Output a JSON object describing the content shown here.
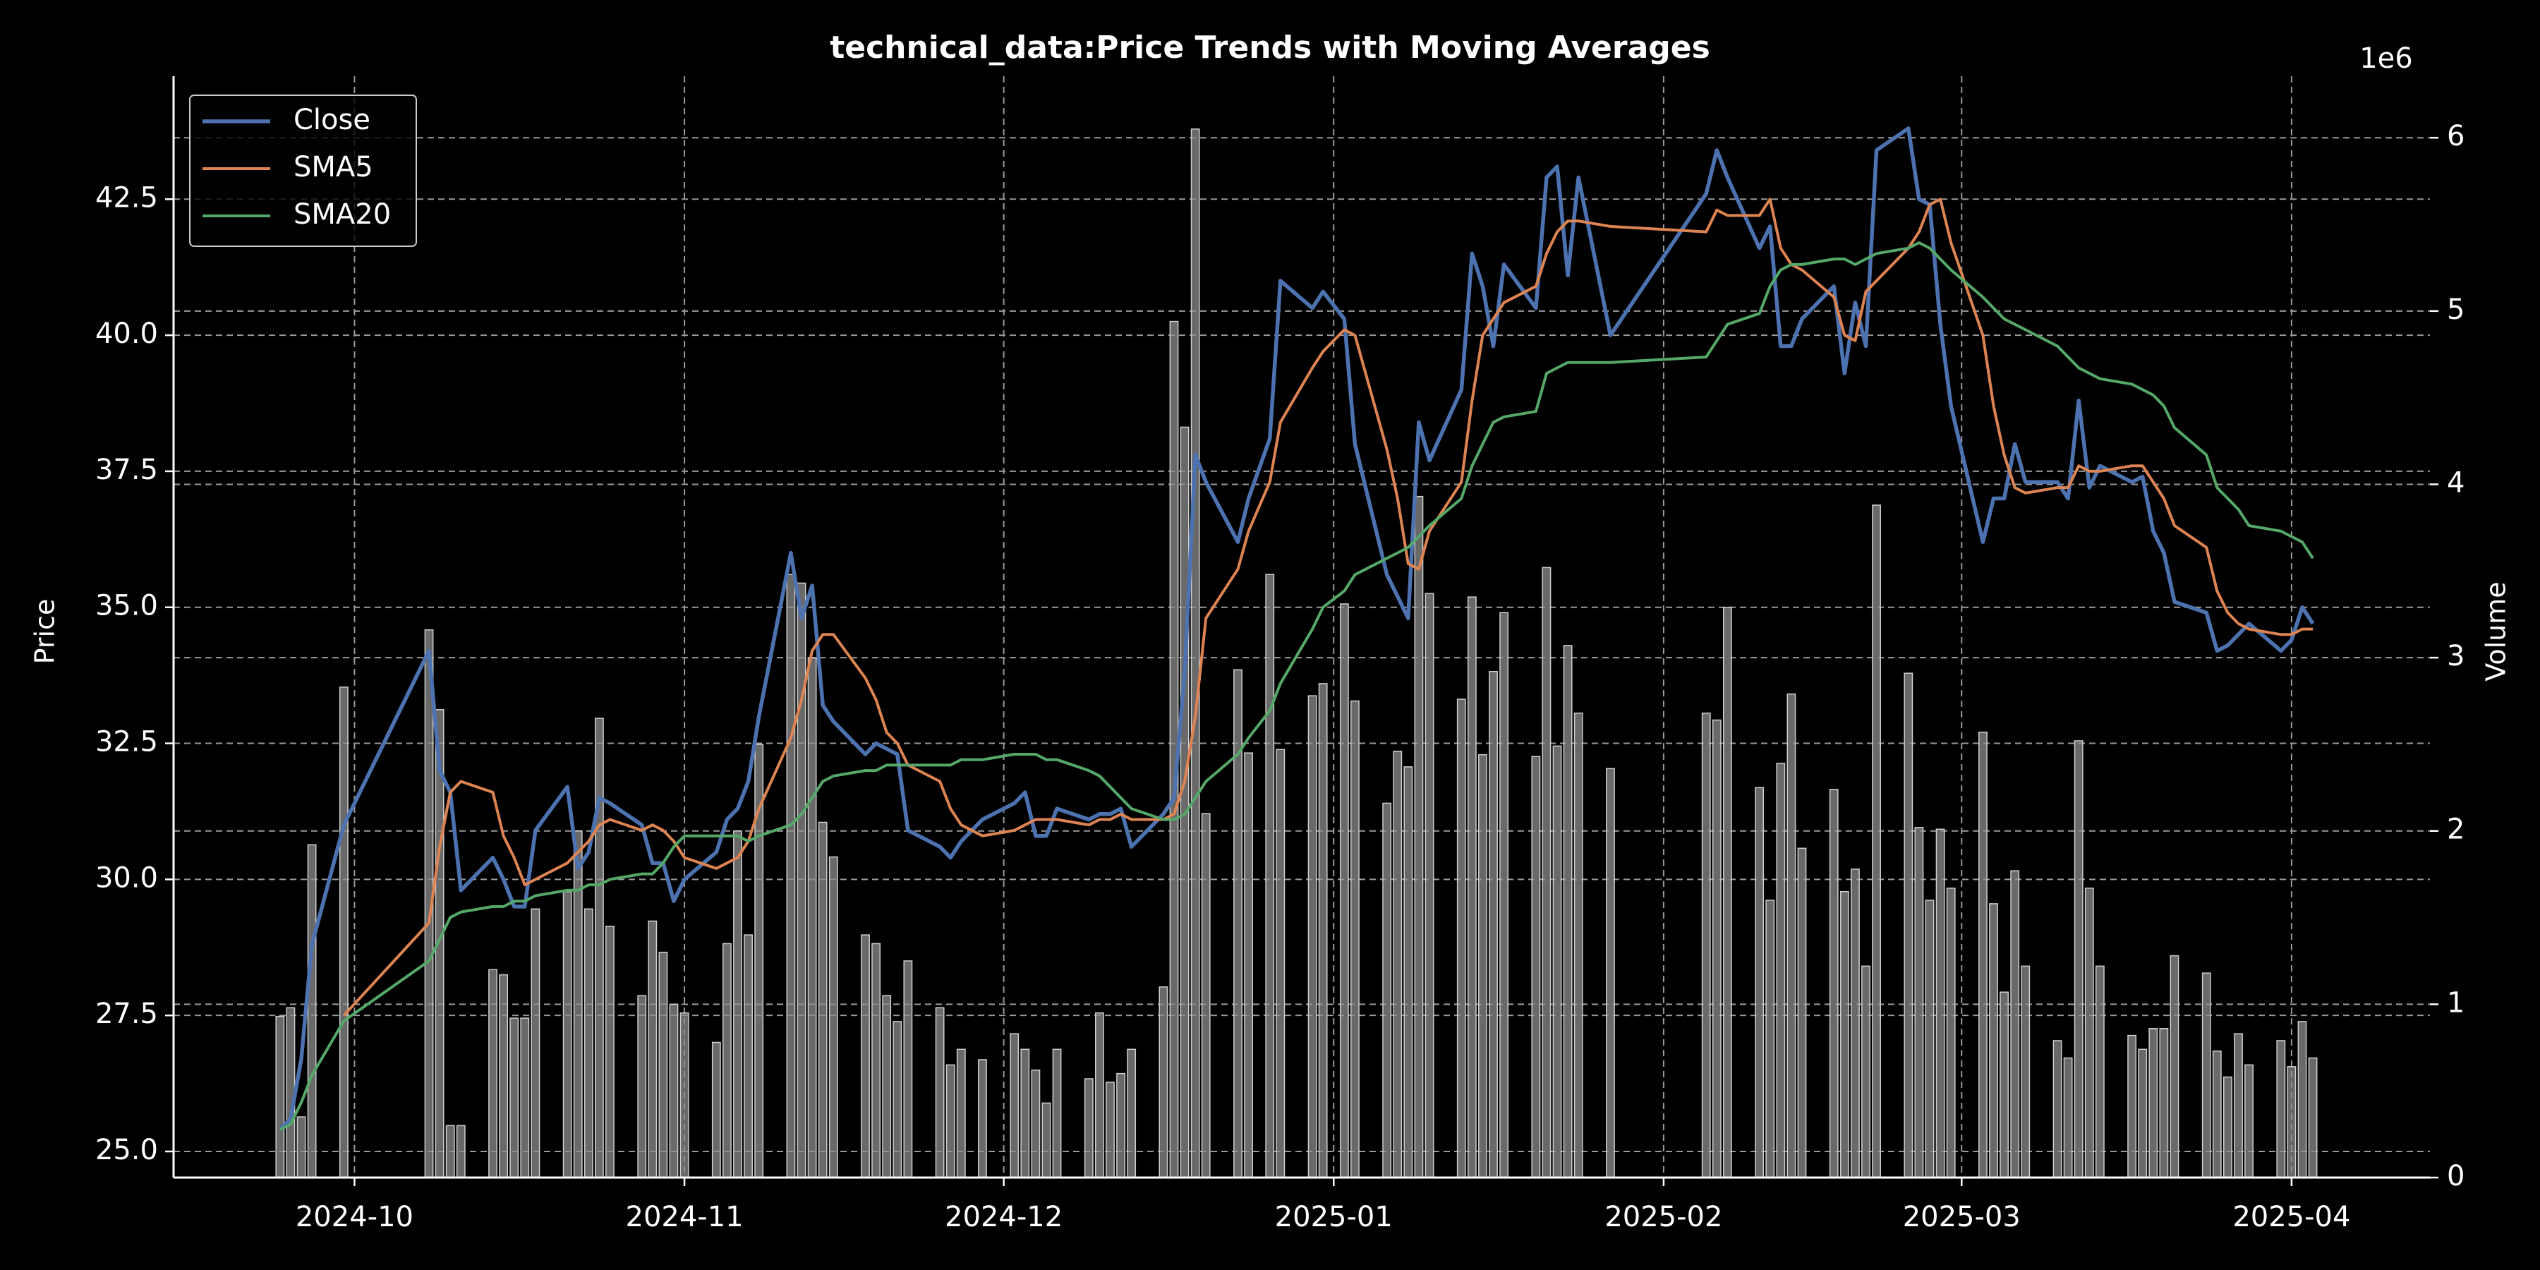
{
  "chart_data": {
    "type": "line",
    "title": "technical_data:Price Trends with Moving Averages",
    "ylabel": "Price",
    "y2label": "Volume",
    "y2_offset_label": "1e6",
    "x": [
      "2024-09-24",
      "2024-09-25",
      "2024-09-26",
      "2024-09-27",
      "2024-09-30",
      "2024-10-08",
      "2024-10-09",
      "2024-10-10",
      "2024-10-11",
      "2024-10-14",
      "2024-10-15",
      "2024-10-16",
      "2024-10-17",
      "2024-10-18",
      "2024-10-21",
      "2024-10-22",
      "2024-10-23",
      "2024-10-24",
      "2024-10-25",
      "2024-10-28",
      "2024-10-29",
      "2024-10-30",
      "2024-10-31",
      "2024-11-01",
      "2024-11-04",
      "2024-11-05",
      "2024-11-06",
      "2024-11-07",
      "2024-11-08",
      "2024-11-11",
      "2024-11-12",
      "2024-11-13",
      "2024-11-14",
      "2024-11-15",
      "2024-11-18",
      "2024-11-19",
      "2024-11-20",
      "2024-11-21",
      "2024-11-22",
      "2024-11-25",
      "2024-11-26",
      "2024-11-27",
      "2024-11-29",
      "2024-12-02",
      "2024-12-03",
      "2024-12-04",
      "2024-12-05",
      "2024-12-06",
      "2024-12-09",
      "2024-12-10",
      "2024-12-11",
      "2024-12-12",
      "2024-12-13",
      "2024-12-16",
      "2024-12-17",
      "2024-12-18",
      "2024-12-19",
      "2024-12-20",
      "2024-12-23",
      "2024-12-24",
      "2024-12-26",
      "2024-12-27",
      "2024-12-30",
      "2024-12-31",
      "2025-01-02",
      "2025-01-03",
      "2025-01-06",
      "2025-01-07",
      "2025-01-08",
      "2025-01-09",
      "2025-01-10",
      "2025-01-13",
      "2025-01-14",
      "2025-01-15",
      "2025-01-16",
      "2025-01-17",
      "2025-01-20",
      "2025-01-21",
      "2025-01-22",
      "2025-01-23",
      "2025-01-24",
      "2025-01-27",
      "2025-02-05",
      "2025-02-06",
      "2025-02-07",
      "2025-02-10",
      "2025-02-11",
      "2025-02-12",
      "2025-02-13",
      "2025-02-14",
      "2025-02-17",
      "2025-02-18",
      "2025-02-19",
      "2025-02-20",
      "2025-02-21",
      "2025-02-24",
      "2025-02-25",
      "2025-02-26",
      "2025-02-27",
      "2025-02-28",
      "2025-03-03",
      "2025-03-04",
      "2025-03-05",
      "2025-03-06",
      "2025-03-07",
      "2025-03-10",
      "2025-03-11",
      "2025-03-12",
      "2025-03-13",
      "2025-03-14",
      "2025-03-17",
      "2025-03-18",
      "2025-03-19",
      "2025-03-20",
      "2025-03-21",
      "2025-03-24",
      "2025-03-25",
      "2025-03-26",
      "2025-03-27",
      "2025-03-28",
      "2025-03-31",
      "2025-04-01",
      "2025-04-02",
      "2025-04-03"
    ],
    "series": [
      {
        "name": "Close",
        "color": "#4c72b0",
        "values": [
          25.4,
          25.6,
          26.7,
          28.8,
          31.0,
          34.2,
          32.0,
          31.6,
          29.8,
          30.4,
          30.0,
          29.5,
          29.5,
          30.9,
          31.7,
          30.2,
          30.5,
          31.5,
          31.4,
          31.0,
          30.3,
          30.3,
          29.6,
          30.0,
          30.5,
          31.1,
          31.3,
          31.8,
          33.0,
          36.0,
          34.8,
          35.4,
          33.2,
          32.9,
          32.3,
          32.5,
          32.4,
          32.3,
          30.9,
          30.6,
          30.4,
          30.7,
          31.1,
          31.4,
          31.6,
          30.8,
          30.8,
          31.3,
          31.1,
          31.2,
          31.2,
          31.3,
          30.6,
          31.2,
          31.5,
          33.8,
          37.8,
          37.3,
          36.2,
          37.0,
          38.1,
          41.0,
          40.5,
          40.8,
          40.3,
          38.0,
          35.6,
          35.2,
          34.8,
          38.4,
          37.7,
          39.0,
          41.5,
          40.9,
          39.8,
          41.3,
          40.5,
          42.9,
          43.1,
          41.1,
          42.9,
          40.0,
          42.6,
          43.4,
          42.9,
          41.6,
          42.0,
          39.8,
          39.8,
          40.3,
          40.9,
          39.3,
          40.6,
          39.8,
          43.4,
          43.8,
          42.5,
          42.4,
          40.2,
          38.7,
          36.2,
          37.0,
          37.0,
          38.0,
          37.3,
          37.3,
          37.0,
          38.8,
          37.2,
          37.6,
          37.3,
          37.4,
          36.4,
          36.0,
          35.1,
          34.9,
          34.2,
          34.3,
          34.5,
          34.7,
          34.2,
          34.4,
          35.0,
          34.7
        ]
      },
      {
        "name": "SMA5",
        "color": "#dd8452",
        "values": [
          null,
          null,
          null,
          null,
          27.5,
          29.2,
          30.6,
          31.6,
          31.8,
          31.6,
          30.8,
          30.4,
          29.9,
          30.0,
          30.3,
          30.5,
          30.7,
          31.0,
          31.1,
          30.9,
          31.0,
          30.9,
          30.7,
          30.4,
          30.2,
          30.3,
          30.4,
          30.7,
          31.3,
          32.6,
          33.3,
          34.2,
          34.5,
          34.5,
          33.7,
          33.3,
          32.7,
          32.5,
          32.1,
          31.8,
          31.3,
          31.0,
          30.8,
          30.9,
          31.0,
          31.1,
          31.1,
          31.1,
          31.0,
          31.1,
          31.1,
          31.2,
          31.1,
          31.1,
          31.2,
          31.8,
          33.0,
          34.8,
          35.7,
          36.4,
          37.3,
          38.4,
          39.4,
          39.7,
          40.1,
          40.0,
          37.9,
          37.0,
          35.8,
          35.7,
          36.4,
          37.3,
          38.8,
          40.0,
          40.3,
          40.6,
          40.9,
          41.5,
          41.9,
          42.1,
          42.1,
          42.0,
          41.9,
          42.3,
          42.2,
          42.2,
          42.5,
          41.6,
          41.3,
          41.2,
          40.7,
          40.0,
          39.9,
          40.8,
          41.0,
          41.6,
          41.9,
          42.4,
          42.5,
          41.7,
          40.0,
          38.7,
          37.8,
          37.2,
          37.1,
          37.2,
          37.2,
          37.6,
          37.5,
          37.5,
          37.6,
          37.6,
          37.3,
          37.0,
          36.5,
          36.1,
          35.3,
          34.9,
          34.7,
          34.6,
          34.5,
          34.5,
          34.6,
          34.6
        ]
      },
      {
        "name": "SMA20",
        "color": "#55a868",
        "values": [
          25.4,
          25.5,
          25.9,
          26.4,
          27.4,
          28.5,
          28.9,
          29.3,
          29.4,
          29.5,
          29.5,
          29.6,
          29.6,
          29.7,
          29.8,
          29.8,
          29.9,
          29.9,
          30.0,
          30.1,
          30.1,
          30.3,
          30.6,
          30.8,
          30.8,
          30.8,
          30.8,
          30.7,
          30.8,
          31.0,
          31.2,
          31.5,
          31.8,
          31.9,
          32.0,
          32.0,
          32.1,
          32.1,
          32.1,
          32.1,
          32.1,
          32.2,
          32.2,
          32.3,
          32.3,
          32.3,
          32.2,
          32.2,
          32.0,
          31.9,
          31.7,
          31.5,
          31.3,
          31.1,
          31.1,
          31.2,
          31.5,
          31.8,
          32.3,
          32.6,
          33.1,
          33.6,
          34.6,
          35.0,
          35.3,
          35.6,
          35.9,
          36.0,
          36.1,
          36.3,
          36.5,
          37.0,
          37.6,
          38.0,
          38.4,
          38.5,
          38.6,
          39.3,
          39.4,
          39.5,
          39.5,
          39.5,
          39.6,
          39.9,
          40.2,
          40.4,
          40.9,
          41.2,
          41.3,
          41.3,
          41.4,
          41.4,
          41.3,
          41.4,
          41.5,
          41.6,
          41.7,
          41.6,
          41.4,
          41.2,
          40.7,
          40.5,
          40.3,
          40.2,
          40.1,
          39.8,
          39.6,
          39.4,
          39.3,
          39.2,
          39.1,
          39.0,
          38.9,
          38.7,
          38.3,
          37.8,
          37.2,
          37.0,
          36.8,
          36.5,
          36.4,
          36.3,
          36.2,
          35.9
        ]
      }
    ],
    "volume": {
      "axis": "y2",
      "color": "#8c8c8c",
      "values": [
        930000,
        980000,
        350000,
        1920000,
        2830000,
        3160000,
        2700000,
        300000,
        300000,
        1200000,
        1170000,
        920000,
        920000,
        1550000,
        1650000,
        2000000,
        1550000,
        2650000,
        1450000,
        1050000,
        1480000,
        1300000,
        1000000,
        950000,
        780000,
        1350000,
        2000000,
        1400000,
        2500000,
        3480000,
        3430000,
        3000000,
        2050000,
        1850000,
        1400000,
        1350000,
        1050000,
        900000,
        1250000,
        980000,
        650000,
        740000,
        680000,
        830000,
        740000,
        620000,
        430000,
        740000,
        570000,
        950000,
        550000,
        600000,
        740000,
        1100000,
        4940000,
        4330000,
        6050000,
        2100000,
        2930000,
        2450000,
        3480000,
        2470000,
        2780000,
        2850000,
        3310000,
        2750000,
        2160000,
        2460000,
        2370000,
        3930000,
        3370000,
        2760000,
        3350000,
        2440000,
        2920000,
        3260000,
        2430000,
        3520000,
        2490000,
        3070000,
        2680000,
        2360000,
        2680000,
        2640000,
        3290000,
        2250000,
        1600000,
        2390000,
        2790000,
        1900000,
        2240000,
        1650000,
        1780000,
        1220000,
        3880000,
        2910000,
        2020000,
        1600000,
        2010000,
        1670000,
        2570000,
        1580000,
        1070000,
        1770000,
        1220000,
        790000,
        690000,
        2520000,
        1670000,
        1220000,
        820000,
        740000,
        860000,
        860000,
        1280000,
        1180000,
        730000,
        580000,
        830000,
        650000,
        790000,
        640000,
        900000,
        690000
      ]
    },
    "xlim": [
      "2024-09-14",
      "2025-04-14"
    ],
    "xticks": [
      {
        "value": "2024-10-01",
        "label": "2024-10"
      },
      {
        "value": "2024-11-01",
        "label": "2024-11"
      },
      {
        "value": "2024-12-01",
        "label": "2024-12"
      },
      {
        "value": "2025-01-01",
        "label": "2025-01"
      },
      {
        "value": "2025-02-01",
        "label": "2025-02"
      },
      {
        "value": "2025-03-01",
        "label": "2025-03"
      },
      {
        "value": "2025-04-01",
        "label": "2025-04"
      }
    ],
    "ylim": [
      24.52,
      44.76
    ],
    "yticks": [
      {
        "value": 25,
        "label": "25.0"
      },
      27.5,
      {
        "value": 30,
        "label": "30.0"
      },
      32.5,
      {
        "value": 35,
        "label": "35.0"
      },
      37.5,
      {
        "value": 40,
        "label": "40.0"
      },
      42.5
    ],
    "y2lim": [
      0,
      6355000
    ],
    "y2ticks": [
      0,
      {
        "value": 1000000,
        "label": "1"
      },
      {
        "value": 2000000,
        "label": "2"
      },
      {
        "value": 3000000,
        "label": "3"
      },
      {
        "value": 4000000,
        "label": "4"
      },
      {
        "value": 5000000,
        "label": "5"
      },
      {
        "value": 6000000,
        "label": "6"
      }
    ],
    "grid": true,
    "legend": "upper left"
  }
}
